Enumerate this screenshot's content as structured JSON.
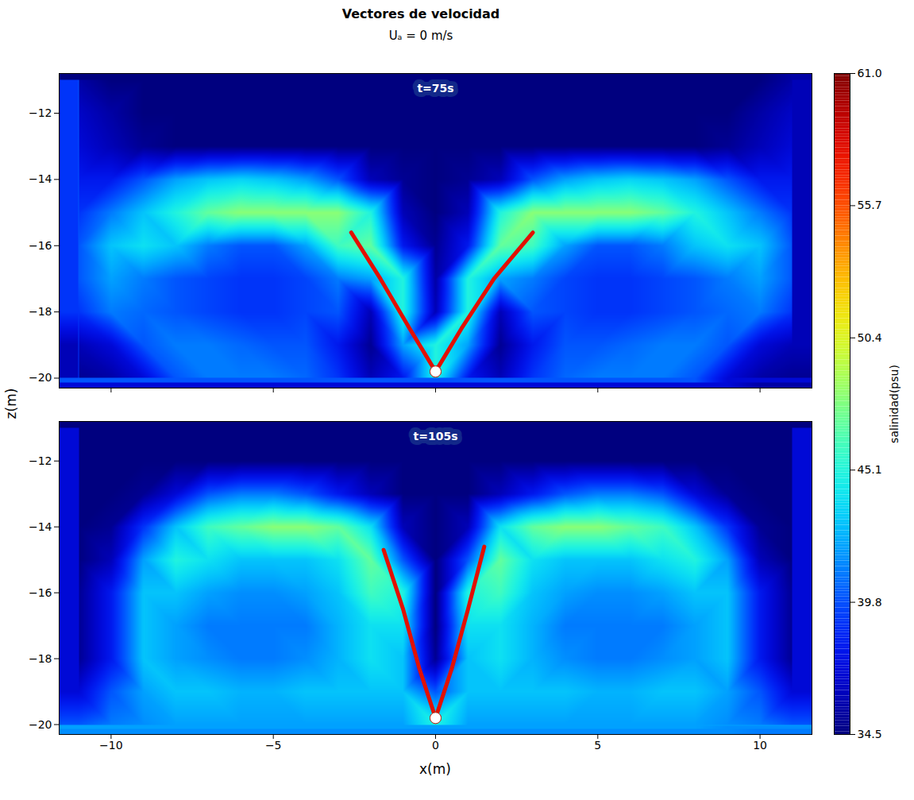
{
  "title": "Vectores de velocidad",
  "subtitle": "Uₐ = 0 m/s",
  "xlabel": "x(m)",
  "ylabel": "z(m)",
  "colorbar": {
    "label": "salinidad(psu)",
    "range": [
      34.5,
      61
    ],
    "ticks": [
      34.5,
      39.8,
      45.1,
      50.4,
      55.7,
      {
        "value": 61,
        "label": "61.0"
      }
    ]
  },
  "chart_data": [
    {
      "type": "heatmap",
      "title": "t=75s",
      "xlim": [
        -11.6,
        11.6
      ],
      "ylim": [
        -20.3,
        -10.8
      ],
      "xticks": [
        -10,
        -5,
        0,
        5,
        10
      ],
      "yticks": [
        -20,
        -18,
        -16,
        -14,
        -12
      ],
      "tick_labels": "y",
      "x": [
        -11,
        -10,
        -9,
        -8,
        -7,
        -6,
        -5,
        -4,
        -3,
        -2,
        -1,
        0,
        1,
        2,
        3,
        4,
        5,
        6,
        7,
        8,
        9,
        10,
        11
      ],
      "z": [
        -11,
        -12,
        -13,
        -14,
        -15,
        -16,
        -17,
        -18,
        -19,
        -20
      ],
      "salinity": [
        [
          35.5,
          34.5,
          34.5,
          34.5,
          34.5,
          34.5,
          34.5,
          34.5,
          34.5,
          34.5,
          34.5,
          34.5,
          34.5,
          34.5,
          34.5,
          34.5,
          34.5,
          34.5,
          34.5,
          34.5,
          34.5,
          34.5,
          35.5
        ],
        [
          36.5,
          35.5,
          34.5,
          34.5,
          34.5,
          34.5,
          34.5,
          34.5,
          34.5,
          34.5,
          34.5,
          34.5,
          34.5,
          34.5,
          34.5,
          34.5,
          34.5,
          34.5,
          34.5,
          34.5,
          34.5,
          35.5,
          36.5
        ],
        [
          37,
          36,
          35,
          34.5,
          34.5,
          34.5,
          34.5,
          34.5,
          34.5,
          34.5,
          34.5,
          34.5,
          34.5,
          34.5,
          34.5,
          34.5,
          34.5,
          34.5,
          34.5,
          34.5,
          35,
          36,
          37
        ],
        [
          38,
          38,
          40,
          42,
          43,
          43.5,
          43,
          42,
          40,
          36,
          35,
          34.5,
          35,
          36,
          40,
          42,
          43,
          43.5,
          43,
          42,
          40,
          38,
          38
        ],
        [
          39,
          41,
          43,
          45,
          47,
          48,
          48,
          48,
          48,
          45,
          36,
          34.5,
          36,
          45,
          48,
          48,
          48,
          48,
          47,
          45,
          43,
          41,
          39
        ],
        [
          40,
          43,
          44,
          43,
          41,
          40,
          40,
          42,
          46,
          47,
          38,
          35,
          38,
          47,
          46,
          42,
          40,
          40,
          41,
          43,
          44,
          43,
          40
        ],
        [
          40,
          42,
          41,
          40,
          39.5,
          39,
          39,
          39.5,
          41,
          42,
          45,
          35.5,
          45,
          42,
          41,
          39.5,
          39,
          39,
          39.5,
          40,
          41,
          42,
          40
        ],
        [
          39,
          41,
          40.5,
          40,
          39.5,
          39,
          39,
          39.5,
          40,
          36,
          45,
          36,
          45,
          36,
          40,
          39.5,
          39,
          39,
          39.5,
          40,
          40.5,
          41,
          39
        ],
        [
          36,
          37,
          40,
          41,
          41,
          40.5,
          40,
          40,
          38,
          35,
          42,
          45,
          42,
          35,
          38,
          40,
          40,
          40.5,
          41,
          41,
          40,
          37,
          36
        ],
        [
          35,
          35.5,
          37,
          40,
          41,
          41,
          41,
          40.5,
          39,
          36,
          38,
          45,
          38,
          36,
          39,
          40.5,
          41,
          41,
          41,
          40,
          37,
          35.5,
          35
        ]
      ],
      "jets": [
        {
          "x": [
            0,
            -0.8,
            -1.7,
            -2.6
          ],
          "z": [
            -19.8,
            -18.5,
            -17,
            -15.6
          ],
          "salinity": 58
        },
        {
          "x": [
            0,
            0.8,
            1.8,
            3.0
          ],
          "z": [
            -19.8,
            -18.5,
            -17,
            -15.6
          ],
          "salinity": 58
        }
      ]
    },
    {
      "type": "heatmap",
      "title": "t=105s",
      "xlim": [
        -11.6,
        11.6
      ],
      "ylim": [
        -20.3,
        -10.8
      ],
      "xticks": [
        -10,
        -5,
        0,
        5,
        10
      ],
      "yticks": [
        -20,
        -18,
        -16,
        -14,
        -12
      ],
      "x": [
        -11,
        -10,
        -9,
        -8,
        -7,
        -6,
        -5,
        -4,
        -3,
        -2,
        -1,
        0,
        1,
        2,
        3,
        4,
        5,
        6,
        7,
        8,
        9,
        10,
        11
      ],
      "z": [
        -11,
        -12,
        -13,
        -14,
        -15,
        -16,
        -17,
        -18,
        -19,
        -20
      ],
      "salinity": [
        [
          34.5,
          34.5,
          34.5,
          34.5,
          34.5,
          34.5,
          34.5,
          34.5,
          34.5,
          34.5,
          34.5,
          34.5,
          34.5,
          34.5,
          34.5,
          34.5,
          34.5,
          34.5,
          34.5,
          34.5,
          34.5,
          34.5,
          34.5
        ],
        [
          34.5,
          34.5,
          34.5,
          34.5,
          34.5,
          34.5,
          34.5,
          34.5,
          34.5,
          34.5,
          34.5,
          34.5,
          34.5,
          34.5,
          34.5,
          34.5,
          34.5,
          34.5,
          34.5,
          34.5,
          34.5,
          34.5,
          34.5
        ],
        [
          34.5,
          34.5,
          35,
          37,
          40,
          41,
          41,
          40,
          38,
          36,
          34.5,
          34.5,
          34.5,
          36,
          38,
          40,
          41,
          41,
          40,
          37,
          35,
          34.5,
          34.5
        ],
        [
          34.5,
          35,
          39,
          43,
          46,
          47,
          48,
          48,
          47,
          44,
          36,
          34.5,
          36,
          44,
          47,
          48,
          48,
          47,
          46,
          43,
          39,
          35,
          34.5
        ],
        [
          34.5,
          36,
          42,
          45,
          44,
          43,
          43,
          43,
          44,
          47,
          40,
          34.5,
          40,
          47,
          44,
          43,
          43,
          43,
          44,
          45,
          42,
          36,
          34.5
        ],
        [
          35,
          38,
          43,
          43,
          42,
          41.5,
          41.5,
          42,
          43,
          46,
          45,
          34.5,
          45,
          46,
          43,
          42,
          41.5,
          41.5,
          42,
          43,
          43,
          38,
          35
        ],
        [
          35,
          38,
          43,
          42,
          41,
          41,
          41,
          41,
          42.5,
          44,
          44,
          34.5,
          44,
          44,
          42.5,
          41,
          41,
          41,
          41,
          42,
          43,
          38,
          35
        ],
        [
          35,
          38,
          43,
          42,
          41.5,
          41,
          41,
          41.5,
          42.5,
          44,
          43,
          35,
          43,
          44,
          42.5,
          41.5,
          41,
          41,
          41.5,
          42,
          43,
          38,
          35
        ],
        [
          37,
          40,
          42,
          43,
          43,
          42.5,
          42.5,
          43,
          43,
          43,
          43,
          40,
          43,
          43,
          43,
          43,
          42.5,
          42.5,
          43,
          43,
          42,
          40,
          37
        ],
        [
          40,
          41,
          41.5,
          42,
          42,
          42,
          42,
          42,
          42,
          42,
          42,
          45,
          42,
          42,
          42,
          42,
          42,
          42,
          42,
          42,
          41.5,
          41,
          40
        ]
      ],
      "jets": [
        {
          "x": [
            0,
            -0.5,
            -1.0,
            -1.6
          ],
          "z": [
            -19.8,
            -18.3,
            -16.5,
            -14.7
          ],
          "salinity": 58
        },
        {
          "x": [
            0,
            0.5,
            1.0,
            1.5
          ],
          "z": [
            -19.8,
            -18.3,
            -16.5,
            -14.6
          ],
          "salinity": 58
        }
      ]
    }
  ]
}
